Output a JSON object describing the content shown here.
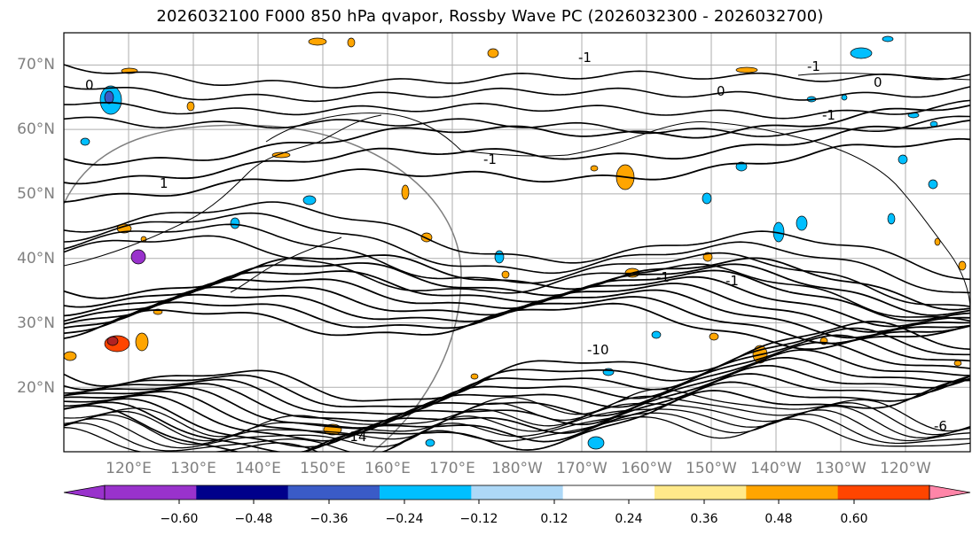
{
  "title": "2026032100 F000 850 hPa qvapor, Rossby Wave PC (2026032300 - 2026032700)",
  "latitude_labels": [
    "70°N",
    "60°N",
    "50°N",
    "40°N",
    "30°N",
    "20°N"
  ],
  "longitude_labels": [
    "120°E",
    "130°E",
    "140°E",
    "150°E",
    "160°E",
    "170°E",
    "180°W",
    "170°W",
    "160°W",
    "150°W",
    "140°W",
    "130°W",
    "120°W"
  ],
  "contour_labels": [
    "0",
    "-1",
    "0",
    "-1",
    "-1",
    "0",
    "-1",
    "1",
    "-10",
    "-1",
    "-1",
    "-14",
    "-6"
  ],
  "colorbar": {
    "ticks": [
      "−0.60",
      "−0.48",
      "−0.36",
      "−0.24",
      "−0.12",
      "0.12",
      "0.24",
      "0.36",
      "0.48",
      "0.60"
    ],
    "colors": [
      "#9932CC",
      "#00008B",
      "#3A5BC7",
      "#00BFFF",
      "#ADD8F7",
      "#FFFFFF",
      "#FFE98A",
      "#FFA500",
      "#FF4500",
      "#B22222",
      "#FF85A8"
    ],
    "extend": "both"
  },
  "map": {
    "projection": "PlateCarree",
    "extent_lon": [
      110,
      250
    ],
    "extent_lat": [
      10,
      75
    ],
    "gridlines": true,
    "coastlines": true,
    "gridline_color": "#808080"
  }
}
